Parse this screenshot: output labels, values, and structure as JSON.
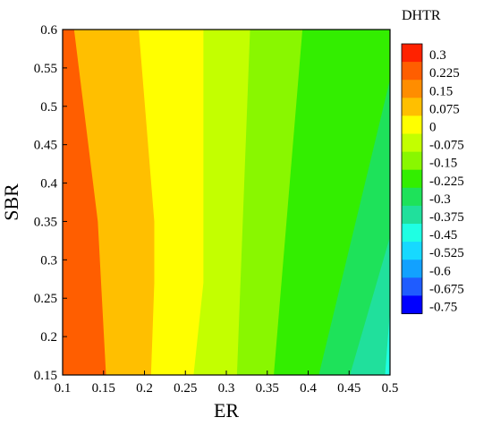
{
  "chart_data": {
    "type": "heatmap",
    "subtype": "filled-contour",
    "xlabel": "ER",
    "ylabel": "SBR",
    "xlim": [
      0.1,
      0.5
    ],
    "ylim": [
      0.15,
      0.6
    ],
    "x_ticks": [
      0.1,
      0.15,
      0.2,
      0.25,
      0.3,
      0.35,
      0.4,
      0.45,
      0.5
    ],
    "x_tick_labels": [
      "0.1",
      "0.15",
      "0.2",
      "0.25",
      "0.3",
      "0.35",
      "0.4",
      "0.45",
      "0.5"
    ],
    "y_ticks": [
      0.15,
      0.2,
      0.25,
      0.3,
      0.35,
      0.4,
      0.45,
      0.5,
      0.55,
      0.6
    ],
    "y_tick_labels": [
      "0.15",
      "0.2",
      "0.25",
      "0.3",
      "0.35",
      "0.4",
      "0.45",
      "0.5",
      "0.55",
      "0.6"
    ],
    "colorbar": {
      "title": "DHTR",
      "levels": [
        0.3,
        0.225,
        0.15,
        0.075,
        0,
        -0.075,
        -0.15,
        -0.225,
        -0.3,
        -0.375,
        -0.45,
        -0.525,
        -0.6,
        -0.675,
        -0.75
      ],
      "labels": [
        "0.3",
        "0.225",
        "0.15",
        "0.075",
        "0",
        "-0.075",
        "-0.15",
        "-0.225",
        "-0.3",
        "-0.375",
        "-0.45",
        "-0.525",
        "-0.6",
        "-0.675",
        "-0.75"
      ],
      "colors": [
        "#ff2200",
        "#ff5e00",
        "#ff8d00",
        "#ffbf00",
        "#ffff00",
        "#c3ff00",
        "#89f700",
        "#33ee00",
        "#1ee25a",
        "#20e09c",
        "#1fffe3",
        "#17d9ff",
        "#12a1ff",
        "#1f5cff",
        "#0000ff"
      ]
    },
    "contour_regions": [
      {
        "band": "0.15 to 0.225",
        "color": "#ff8d00",
        "boundary_right": [
          [
            0.114,
            0.6
          ],
          [
            0.143,
            0.35
          ],
          [
            0.153,
            0.15
          ]
        ]
      },
      {
        "band": "0.075 to 0.15",
        "color": "#ffbf00",
        "boundary_right": [
          [
            0.193,
            0.6
          ],
          [
            0.212,
            0.35
          ],
          [
            0.212,
            0.27
          ],
          [
            0.208,
            0.15
          ]
        ]
      },
      {
        "band": "0 to 0.075",
        "color": "#ffff00",
        "boundary_right": [
          [
            0.272,
            0.6
          ],
          [
            0.272,
            0.27
          ],
          [
            0.26,
            0.15
          ]
        ]
      },
      {
        "band": "-0.075 to 0",
        "color": "#c3ff00",
        "boundary_right": [
          [
            0.329,
            0.6
          ],
          [
            0.313,
            0.15
          ]
        ]
      },
      {
        "band": "-0.15 to -0.075",
        "color": "#89f700",
        "boundary_right": [
          [
            0.393,
            0.6
          ],
          [
            0.358,
            0.15
          ]
        ]
      },
      {
        "band": "-0.225 to -0.15",
        "color": "#33ee00",
        "boundary_right": [
          [
            0.5,
            0.535
          ],
          [
            0.413,
            0.15
          ]
        ]
      },
      {
        "band": "-0.3 to -0.225",
        "color": "#1ee25a",
        "boundary_right": [
          [
            0.5,
            0.33
          ],
          [
            0.451,
            0.15
          ]
        ]
      },
      {
        "band": "-0.375 to -0.3",
        "color": "#20e09c",
        "boundary_right": [
          [
            0.5,
            0.235
          ],
          [
            0.494,
            0.15
          ]
        ]
      },
      {
        "band": "-0.45 to -0.375",
        "color": "#1fffe3",
        "boundary_right": [
          [
            0.5,
            0.15
          ]
        ]
      }
    ]
  }
}
